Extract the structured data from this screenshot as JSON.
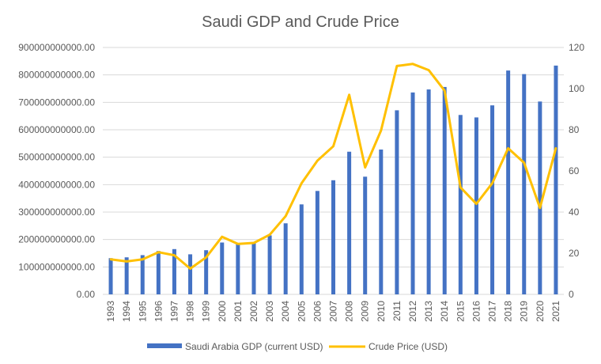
{
  "chart_data": {
    "type": "bar+line",
    "title": "Saudi GDP and Crude Price",
    "categories": [
      "1993",
      "1994",
      "1995",
      "1996",
      "1997",
      "1998",
      "1999",
      "2000",
      "2001",
      "2002",
      "2003",
      "2004",
      "2005",
      "2006",
      "2007",
      "2008",
      "2009",
      "2010",
      "2011",
      "2012",
      "2013",
      "2014",
      "2015",
      "2016",
      "2017",
      "2018",
      "2019",
      "2020",
      "2021"
    ],
    "series": [
      {
        "name": "Saudi Arabia GDP (current USD)",
        "type": "bar",
        "axis": "left",
        "color": "#4472C4",
        "values": [
          132000000000,
          135000000000,
          143000000000,
          158000000000,
          165000000000,
          146000000000,
          161000000000,
          189000000000,
          184000000000,
          189000000000,
          215000000000,
          259000000000,
          328000000000,
          377000000000,
          416000000000,
          520000000000,
          429000000000,
          528000000000,
          671000000000,
          736000000000,
          747000000000,
          756000000000,
          654000000000,
          645000000000,
          689000000000,
          816000000000,
          803000000000,
          703000000000,
          834000000000
        ]
      },
      {
        "name": "Crude Price (USD)",
        "type": "line",
        "axis": "right",
        "color": "#FFC000",
        "values": [
          17,
          16,
          17,
          20.5,
          19,
          12.5,
          18,
          28,
          24.5,
          25,
          29,
          38,
          54,
          65,
          72,
          97,
          61.7,
          79.6,
          111,
          112,
          109,
          99,
          52,
          44,
          54,
          71,
          64,
          42,
          71
        ]
      }
    ],
    "y_left": {
      "min": 0,
      "max": 900000000000,
      "step": 100000000000,
      "tick_labels": [
        "0.00",
        "100000000000.00",
        "200000000000.00",
        "300000000000.00",
        "400000000000.00",
        "500000000000.00",
        "600000000000.00",
        "700000000000.00",
        "800000000000.00",
        "900000000000.00"
      ]
    },
    "y_right": {
      "min": 0,
      "max": 120,
      "step": 20,
      "tick_labels": [
        "0",
        "20",
        "40",
        "60",
        "80",
        "100",
        "120"
      ]
    },
    "gridlines": true,
    "legend": {
      "position": "bottom",
      "entries": [
        "Saudi Arabia GDP (current USD)",
        "Crude Price (USD)"
      ]
    },
    "colors": {
      "gridline": "#d9d9d9",
      "text": "#595959"
    }
  }
}
